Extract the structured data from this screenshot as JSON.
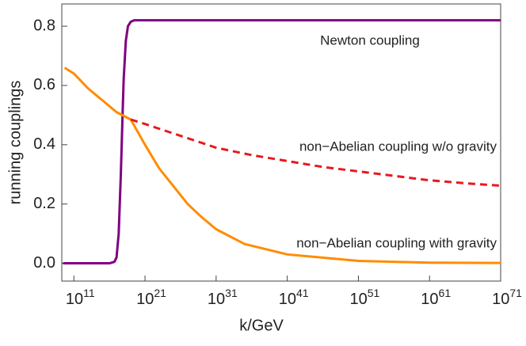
{
  "chart_data": {
    "type": "line",
    "xlabel": "k/GeV",
    "ylabel": "running couplings",
    "xscale": "log",
    "xlim": [
      2000000000.0,
      1e+71
    ],
    "ylim": [
      -0.06,
      0.875
    ],
    "xticks": [
      {
        "value": 100000000000.0,
        "label": "10^11"
      },
      {
        "value": 1e+21,
        "label": "10^21"
      },
      {
        "value": 1e+31,
        "label": "10^31"
      },
      {
        "value": 1e+41,
        "label": "10^41"
      },
      {
        "value": 1e+51,
        "label": "10^51"
      },
      {
        "value": 1e+61,
        "label": "10^61"
      },
      {
        "value": 1e+71,
        "label": "10^71"
      }
    ],
    "yticks": [
      {
        "value": 0,
        "label": "0.0"
      },
      0.2,
      0.4,
      0.6,
      0.8
    ],
    "series": [
      {
        "name": "Newton coupling",
        "color": "#800080",
        "dash": false,
        "x": [
          3000000000.0,
          1e+16,
          5e+16,
          1e+17,
          2e+17,
          4e+17,
          7e+17,
          1e+18,
          2e+18,
          4e+18,
          1e+19,
          3e+19,
          1e+20,
          1e+71
        ],
        "values": [
          0,
          0,
          0.005,
          0.02,
          0.1,
          0.3,
          0.5,
          0.62,
          0.75,
          0.8,
          0.815,
          0.82,
          0.82,
          0.82
        ]
      },
      {
        "name": "non−Abelian coupling with gravity",
        "color": "#ff8c00",
        "dash": false,
        "x": [
          5000000000.0,
          100000000000.0,
          10000000000000.0,
          1000000000000000.0,
          1e+17,
          1e+19,
          1e+21,
          1e+23,
          1e+25,
          1e+27,
          1e+29,
          1e+31,
          1e+35,
          1e+41,
          1e+51,
          1e+61,
          1e+71
        ],
        "values": [
          0.66,
          0.64,
          0.59,
          0.55,
          0.51,
          0.485,
          0.4,
          0.32,
          0.26,
          0.2,
          0.155,
          0.115,
          0.065,
          0.03,
          0.008,
          0.002,
          0.001
        ]
      },
      {
        "name": "non−Abelian coupling w/o gravity",
        "color": "#e8191e",
        "dash": true,
        "x": [
          1e+19,
          1e+21,
          1e+26,
          1e+31,
          1e+36,
          1e+41,
          1e+46,
          1e+51,
          1e+56,
          1e+61,
          1e+66,
          1e+71
        ],
        "values": [
          0.485,
          0.47,
          0.43,
          0.39,
          0.365,
          0.345,
          0.325,
          0.31,
          0.295,
          0.28,
          0.27,
          0.262
        ]
      }
    ],
    "annotations": [
      "Newton coupling",
      "non−Abelian coupling w/o gravity",
      "non−Abelian coupling with gravity"
    ]
  }
}
